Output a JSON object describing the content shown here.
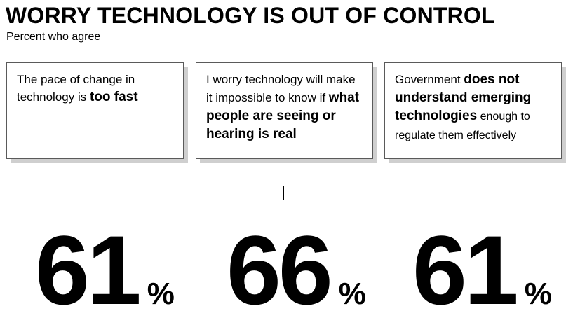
{
  "header": {
    "title": "WORRY TECHNOLOGY IS OUT OF CONTROL",
    "subtitle": "Percent who agree"
  },
  "cards": [
    {
      "segments": [
        {
          "text": "The pace of change in technology is ",
          "bold": false
        },
        {
          "text": "too fast",
          "bold": true
        }
      ],
      "value": "61",
      "unit": "%"
    },
    {
      "segments": [
        {
          "text": "I worry technology will make it impossible to know if ",
          "bold": false
        },
        {
          "text": "what people are seeing or hearing is real",
          "bold": true
        }
      ],
      "value": "66",
      "unit": "%"
    },
    {
      "segments": [
        {
          "text": "Government ",
          "bold": false
        },
        {
          "text": "does not understand emerging technologies",
          "bold": true
        },
        {
          "text": " enough to regulate them effectively",
          "bold": false
        }
      ],
      "value": "61",
      "unit": "%"
    }
  ]
}
